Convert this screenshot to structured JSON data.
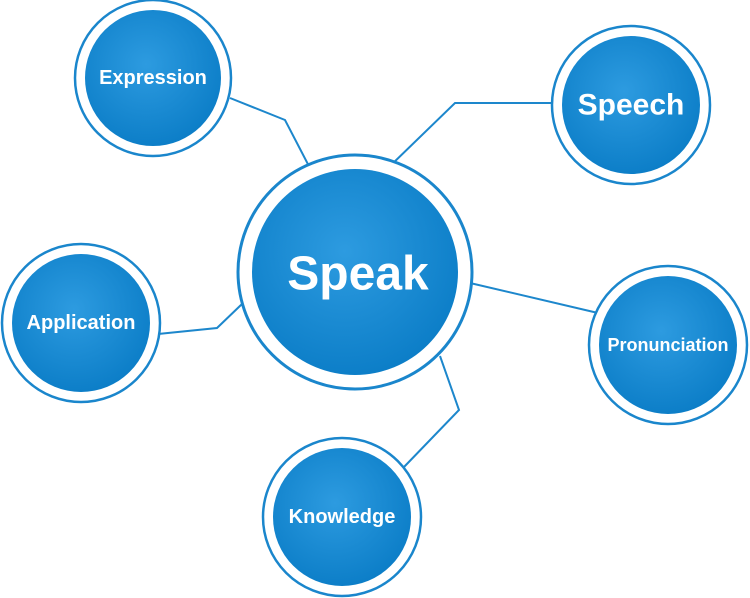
{
  "diagram": {
    "center": {
      "label": "Speak"
    },
    "nodes": [
      {
        "id": "expression",
        "label": "Expression"
      },
      {
        "id": "speech",
        "label": "Speech"
      },
      {
        "id": "application",
        "label": "Application"
      },
      {
        "id": "pronunciation",
        "label": "Pronunciation"
      },
      {
        "id": "knowledge",
        "label": "Knowledge"
      }
    ]
  },
  "colors": {
    "node_fill": "#0a84cf",
    "node_fill_light": "#2d9be0",
    "ring": "#1a86cc",
    "connector": "#1d87cc",
    "label": "#ffffff",
    "background": "#ffffff"
  }
}
